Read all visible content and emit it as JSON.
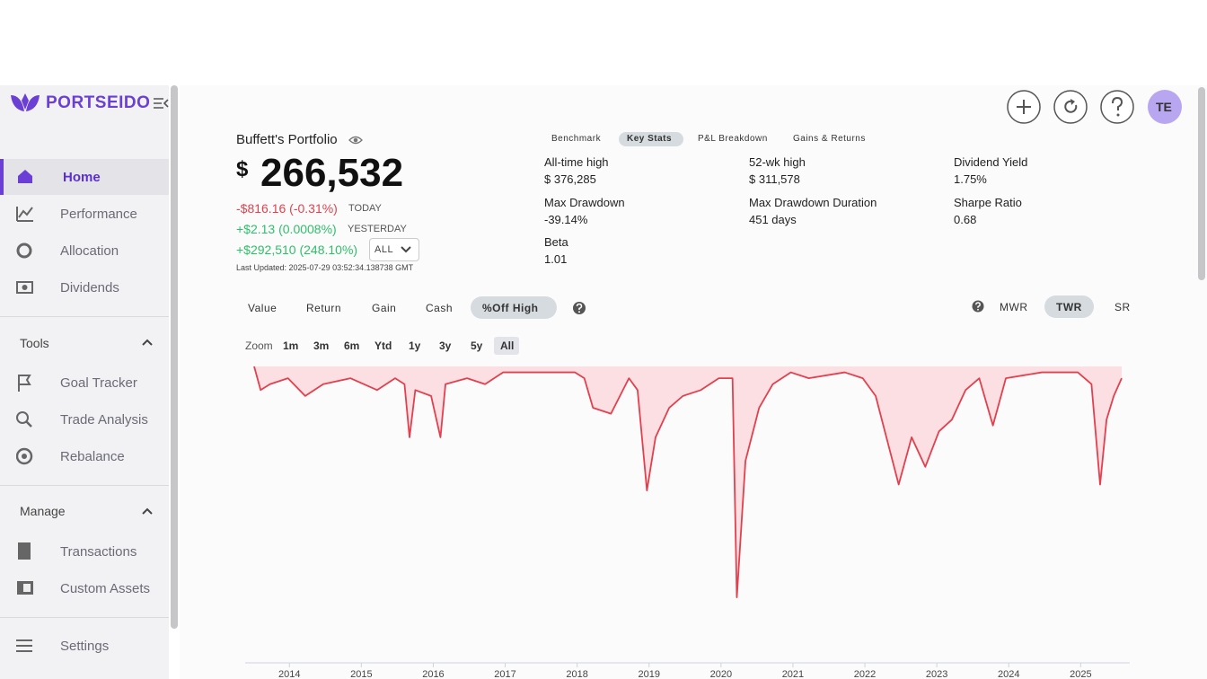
{
  "sidebar": {
    "brand": "PORTSEIDO",
    "nav": [
      "Home",
      "Performance",
      "Allocation",
      "Dividends"
    ],
    "tools": {
      "title": "Tools",
      "items": [
        "Goal Tracker",
        "Trade Analysis",
        "Rebalance"
      ]
    },
    "manage": {
      "title": "Manage",
      "items": [
        "Transactions",
        "Custom Assets"
      ]
    },
    "settings": "Settings"
  },
  "header": {
    "avatar": "TE"
  },
  "portfolio": {
    "name": "Buffett's Portfolio",
    "currency": "$",
    "value": "266,532",
    "changes": [
      {
        "amount": "-$816.16 (-0.31%)",
        "label": "TODAY"
      },
      {
        "amount": "+$2.13 (0.0008%)",
        "label": "YESTERDAY"
      },
      {
        "amount": "+$292,510 (248.10%)",
        "label": "ALL"
      }
    ],
    "updated": "Last Updated: 2025-07-29 03:52:34.138738 GMT"
  },
  "stats": {
    "tabs": [
      "Benchmark",
      "Key Stats",
      "P&L Breakdown",
      "Gains & Returns"
    ],
    "items": [
      {
        "label": "All-time high",
        "value": "$ 376,285"
      },
      {
        "label": "52-wk high",
        "value": "$ 311,578"
      },
      {
        "label": "Dividend Yield",
        "value": "1.75%"
      },
      {
        "label": "Max Drawdown",
        "value": "-39.14%"
      },
      {
        "label": "Max Drawdown Duration",
        "value": "451 days"
      },
      {
        "label": "Sharpe Ratio",
        "value": "0.68"
      },
      {
        "label": "Beta",
        "value": "1.01"
      }
    ]
  },
  "chart_controls": {
    "views": [
      "Value",
      "Return",
      "Gain",
      "Cash",
      "%Off High"
    ],
    "methods": [
      "MWR",
      "TWR",
      "SR"
    ],
    "zoom_label": "Zoom",
    "zoom": [
      "1m",
      "3m",
      "6m",
      "Ytd",
      "1y",
      "3y",
      "5y",
      "All"
    ]
  },
  "chart_data": {
    "type": "area",
    "color": "#e2404e",
    "fill": "#fbdfe2",
    "x": [
      2013.51,
      2013.6,
      2013.73,
      2013.98,
      2014.22,
      2014.47,
      2014.85,
      2015.22,
      2015.47,
      2015.6,
      2015.67,
      2015.75,
      2015.97,
      2016.1,
      2016.17,
      2016.47,
      2016.72,
      2016.97,
      2017.47,
      2017.97,
      2018.1,
      2018.22,
      2018.47,
      2018.72,
      2018.84,
      2018.97,
      2019.09,
      2019.28,
      2019.47,
      2019.72,
      2019.97,
      2020.16,
      2020.22,
      2020.34,
      2020.53,
      2020.72,
      2020.97,
      2021.22,
      2021.72,
      2021.97,
      2022.15,
      2022.47,
      2022.65,
      2022.84,
      2023.03,
      2023.21,
      2023.4,
      2023.59,
      2023.78,
      2023.96,
      2024.46,
      2024.96,
      2025.15,
      2025.27,
      2025.36,
      2025.46,
      2025.57
    ],
    "values": [
      0,
      -4,
      -3,
      -2,
      -5,
      -3,
      -2,
      -4,
      -2,
      -3,
      -12,
      -4,
      -5,
      -12,
      -3,
      -2,
      -3,
      -1,
      -1,
      -1,
      -2,
      -7,
      -8,
      -2,
      -4,
      -21,
      -12,
      -7,
      -5,
      -4,
      -2,
      -2,
      -39.1,
      -16,
      -7,
      -3,
      -1,
      -2,
      -1,
      -2,
      -5,
      -20,
      -12,
      -17,
      -11,
      -9,
      -4,
      -2,
      -10,
      -2,
      -1,
      -1,
      -3,
      -20,
      -9,
      -5,
      -2
    ],
    "xlim": [
      2013.51,
      2025.57
    ],
    "ylim": [
      -40,
      0
    ],
    "xticks": [
      2014,
      2015,
      2016,
      2017,
      2018,
      2019,
      2020,
      2021,
      2022,
      2023,
      2024,
      2025
    ]
  }
}
